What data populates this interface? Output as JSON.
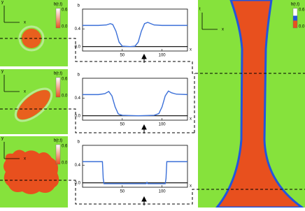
{
  "chart_data": [
    {
      "type": "line",
      "y_label": "b",
      "x_label": "x",
      "x": [
        0,
        20,
        30,
        35,
        38,
        42,
        46,
        50,
        60,
        66,
        70,
        74,
        78,
        82,
        86,
        90,
        100,
        132
      ],
      "series": [
        {
          "color": "#3a6fd8",
          "values": [
            0.48,
            0.48,
            0.49,
            0.52,
            0.5,
            0.35,
            0.1,
            0.01,
            0,
            0.01,
            0.1,
            0.35,
            0.52,
            0.55,
            0.52,
            0.49,
            0.48,
            0.48
          ]
        }
      ],
      "xlim": [
        0,
        132
      ],
      "ylim": [
        -0.1,
        0.85
      ],
      "xticks": [
        50,
        100
      ],
      "yticks": [
        {
          "value": 0.4,
          "label": "0.4"
        },
        {
          "value": 0,
          "label": "0.0"
        }
      ]
    },
    {
      "type": "line",
      "y_label": "b",
      "x_label": "x",
      "x": [
        0,
        20,
        28,
        33,
        37,
        41,
        45,
        50,
        70,
        90,
        96,
        100,
        104,
        108,
        112,
        118,
        132
      ],
      "series": [
        {
          "color": "#3a6fd8",
          "values": [
            0.48,
            0.48,
            0.5,
            0.55,
            0.45,
            0.2,
            0.04,
            0.01,
            0,
            0.01,
            0.05,
            0.2,
            0.45,
            0.56,
            0.52,
            0.49,
            0.48
          ]
        }
      ],
      "xlim": [
        0,
        132
      ],
      "ylim": [
        -0.1,
        0.85
      ],
      "xticks": [
        50,
        100
      ],
      "yticks": [
        {
          "value": 0.4,
          "label": "0.4"
        },
        {
          "value": 0,
          "label": "0.0"
        }
      ]
    },
    {
      "type": "line",
      "y_label": "b",
      "x_label": "x",
      "x": [
        0,
        25,
        26,
        27,
        80,
        81,
        82,
        104,
        105,
        106,
        132
      ],
      "series": [
        {
          "color": "#3a6fd8",
          "values": [
            0.48,
            0.48,
            0.1,
            -0.02,
            -0.02,
            0.01,
            -0.02,
            -0.02,
            0.1,
            0.48,
            0.48
          ]
        }
      ],
      "xlim": [
        0,
        132
      ],
      "ylim": [
        -0.1,
        0.85
      ],
      "xticks": [
        50,
        100
      ],
      "yticks": [
        {
          "value": 0.4,
          "label": "0.4"
        },
        {
          "value": 0,
          "label": "0.0"
        }
      ]
    }
  ],
  "images": [
    {
      "axis_labels": [
        "x",
        "y"
      ],
      "colorbar": {
        "title": "b(r,t)",
        "ticks": [
          "0.6",
          "0.0"
        ]
      }
    },
    {
      "axis_labels": [
        "x",
        "y"
      ],
      "colorbar": {
        "title": "b(r,t)",
        "ticks": [
          "0.6",
          "0.0"
        ]
      }
    },
    {
      "axis_labels": [
        "x",
        "y"
      ],
      "colorbar": {
        "title": "b(r,t)",
        "ticks": [
          "0.6",
          "0.0"
        ]
      }
    },
    {
      "axis_labels": [
        "x",
        "t"
      ],
      "colorbar": {
        "title": "b(r,t)",
        "ticks": [
          "0.6",
          "0.0"
        ]
      }
    }
  ]
}
